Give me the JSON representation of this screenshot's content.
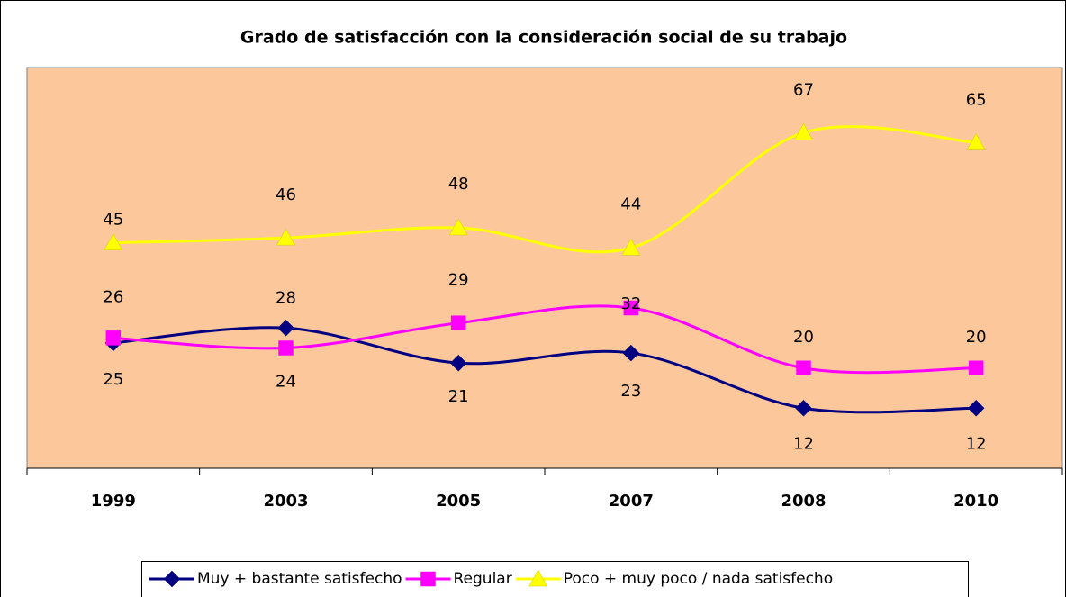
{
  "chart_data": {
    "type": "line",
    "title": "Grado de satisfacción con la consideración social de su trabajo",
    "categories": [
      "1999",
      "2003",
      "2005",
      "2007",
      "2008",
      "2010"
    ],
    "series": [
      {
        "name": "Muy + bastante satisfecho",
        "color": "#000080",
        "marker": "diamond",
        "values": [
          25,
          28,
          21,
          23,
          12,
          12
        ]
      },
      {
        "name": "Regular",
        "color": "#ff00ff",
        "marker": "square",
        "values": [
          26,
          24,
          29,
          32,
          20,
          20
        ]
      },
      {
        "name": "Poco + muy poco / nada satisfecho",
        "color": "#ffff00",
        "marker": "triangle",
        "values": [
          45,
          46,
          48,
          44,
          67,
          65
        ]
      }
    ],
    "ylim": [
      0,
      80
    ],
    "legend": "bottom",
    "smooth": true,
    "plot_background": "#fcc89b"
  }
}
